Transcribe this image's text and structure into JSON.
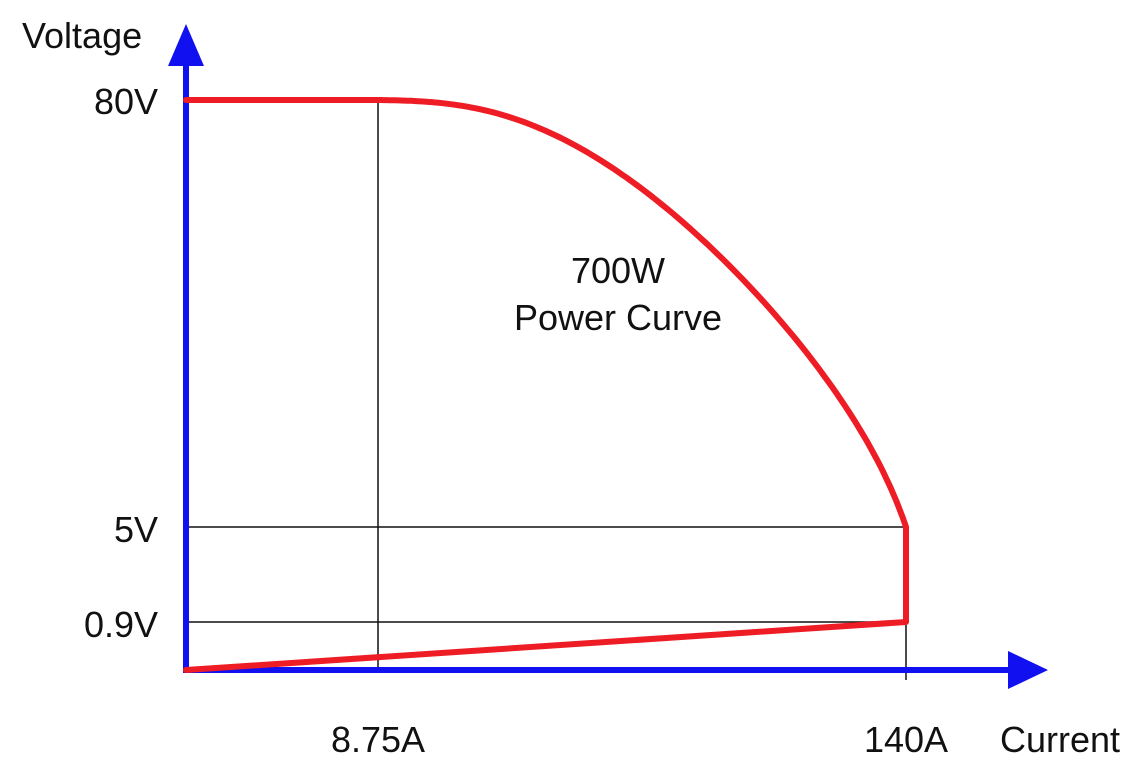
{
  "axes": {
    "y_label": "Voltage",
    "x_label": "Current",
    "color": "#1010f0"
  },
  "curve": {
    "color": "#ee1c24",
    "label_line1": "700W",
    "label_line2": "Power Curve"
  },
  "ticks": {
    "v80": "80V",
    "v5": "5V",
    "v09": "0.9V",
    "a875": "8.75A",
    "a140": "140A"
  },
  "chart_data": {
    "type": "line",
    "xlabel": "Current",
    "ylabel": "Voltage",
    "x_unit": "A",
    "y_unit": "V",
    "power_w": 700,
    "x_ticks": [
      8.75,
      140
    ],
    "y_ticks": [
      0.9,
      5,
      80
    ],
    "segments": [
      {
        "kind": "constant_voltage",
        "points": [
          [
            0,
            80
          ],
          [
            8.75,
            80
          ]
        ]
      },
      {
        "kind": "constant_power",
        "power": 700,
        "from_current": 8.75,
        "to_current": 140
      },
      {
        "kind": "vertical",
        "points": [
          [
            140,
            5
          ],
          [
            140,
            0.9
          ]
        ]
      },
      {
        "kind": "linear",
        "points": [
          [
            140,
            0.9
          ],
          [
            0,
            0
          ]
        ]
      }
    ]
  }
}
